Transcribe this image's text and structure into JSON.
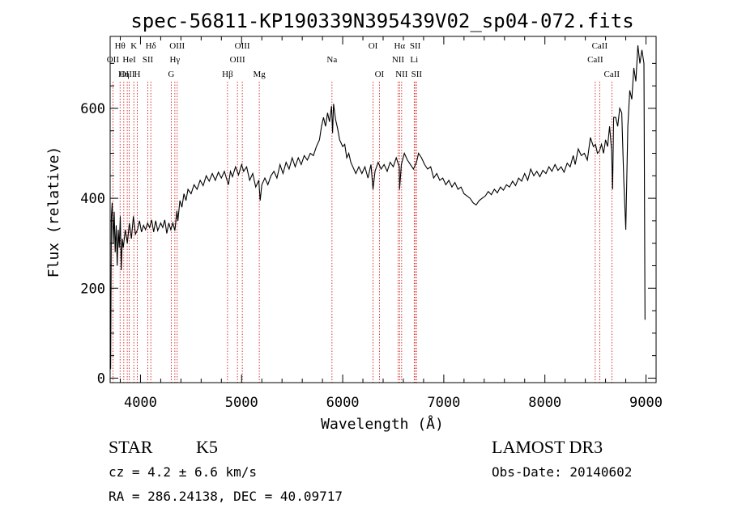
{
  "chart_data": {
    "type": "line",
    "title": "spec-56811-KP190339N395439V02_sp04-072.fits",
    "xlabel": "Wavelength (Å)",
    "ylabel": "Flux (relative)",
    "xlim": [
      3700,
      9100
    ],
    "ylim": [
      -10,
      760
    ],
    "xticks": [
      4000,
      5000,
      6000,
      7000,
      8000,
      9000
    ],
    "yticks": [
      0,
      200,
      400,
      600
    ],
    "grid": false,
    "series": [
      {
        "points": [
          [
            3700,
            150
          ],
          [
            3705,
            20
          ],
          [
            3712,
            360
          ],
          [
            3720,
            390
          ],
          [
            3730,
            300
          ],
          [
            3740,
            370
          ],
          [
            3750,
            280
          ],
          [
            3760,
            340
          ],
          [
            3770,
            250
          ],
          [
            3780,
            330
          ],
          [
            3790,
            290
          ],
          [
            3800,
            360
          ],
          [
            3810,
            240
          ],
          [
            3820,
            310
          ],
          [
            3830,
            290
          ],
          [
            3850,
            330
          ],
          [
            3870,
            300
          ],
          [
            3890,
            345
          ],
          [
            3910,
            310
          ],
          [
            3930,
            360
          ],
          [
            3950,
            320
          ],
          [
            3970,
            330
          ],
          [
            3990,
            350
          ],
          [
            4010,
            325
          ],
          [
            4030,
            340
          ],
          [
            4050,
            330
          ],
          [
            4070,
            345
          ],
          [
            4090,
            335
          ],
          [
            4110,
            352
          ],
          [
            4130,
            325
          ],
          [
            4150,
            350
          ],
          [
            4170,
            328
          ],
          [
            4200,
            345
          ],
          [
            4220,
            335
          ],
          [
            4240,
            352
          ],
          [
            4260,
            322
          ],
          [
            4280,
            345
          ],
          [
            4300,
            330
          ],
          [
            4320,
            345
          ],
          [
            4340,
            328
          ],
          [
            4360,
            372
          ],
          [
            4370,
            350
          ],
          [
            4390,
            395
          ],
          [
            4410,
            380
          ],
          [
            4430,
            410
          ],
          [
            4450,
            395
          ],
          [
            4470,
            420
          ],
          [
            4500,
            410
          ],
          [
            4530,
            430
          ],
          [
            4560,
            420
          ],
          [
            4590,
            440
          ],
          [
            4620,
            428
          ],
          [
            4650,
            450
          ],
          [
            4680,
            438
          ],
          [
            4710,
            455
          ],
          [
            4740,
            440
          ],
          [
            4770,
            458
          ],
          [
            4800,
            445
          ],
          [
            4830,
            460
          ],
          [
            4850,
            445
          ],
          [
            4870,
            430
          ],
          [
            4890,
            460
          ],
          [
            4910,
            448
          ],
          [
            4940,
            470
          ],
          [
            4970,
            452
          ],
          [
            5000,
            475
          ],
          [
            5020,
            460
          ],
          [
            5050,
            470
          ],
          [
            5080,
            440
          ],
          [
            5110,
            455
          ],
          [
            5140,
            425
          ],
          [
            5170,
            440
          ],
          [
            5184,
            395
          ],
          [
            5200,
            430
          ],
          [
            5230,
            445
          ],
          [
            5260,
            430
          ],
          [
            5290,
            450
          ],
          [
            5320,
            460
          ],
          [
            5350,
            445
          ],
          [
            5380,
            475
          ],
          [
            5410,
            455
          ],
          [
            5440,
            480
          ],
          [
            5470,
            465
          ],
          [
            5500,
            490
          ],
          [
            5530,
            470
          ],
          [
            5560,
            490
          ],
          [
            5590,
            475
          ],
          [
            5620,
            495
          ],
          [
            5650,
            485
          ],
          [
            5680,
            500
          ],
          [
            5710,
            495
          ],
          [
            5740,
            515
          ],
          [
            5770,
            530
          ],
          [
            5790,
            560
          ],
          [
            5810,
            580
          ],
          [
            5830,
            560
          ],
          [
            5850,
            590
          ],
          [
            5870,
            570
          ],
          [
            5890,
            605
          ],
          [
            5900,
            545
          ],
          [
            5910,
            610
          ],
          [
            5930,
            575
          ],
          [
            5950,
            555
          ],
          [
            5970,
            530
          ],
          [
            6000,
            515
          ],
          [
            6020,
            520
          ],
          [
            6040,
            490
          ],
          [
            6060,
            500
          ],
          [
            6080,
            480
          ],
          [
            6100,
            470
          ],
          [
            6130,
            455
          ],
          [
            6160,
            470
          ],
          [
            6190,
            455
          ],
          [
            6220,
            470
          ],
          [
            6250,
            445
          ],
          [
            6280,
            475
          ],
          [
            6300,
            420
          ],
          [
            6320,
            460
          ],
          [
            6350,
            480
          ],
          [
            6380,
            465
          ],
          [
            6410,
            475
          ],
          [
            6440,
            460
          ],
          [
            6470,
            480
          ],
          [
            6500,
            470
          ],
          [
            6530,
            490
          ],
          [
            6560,
            470
          ],
          [
            6563,
            420
          ],
          [
            6580,
            475
          ],
          [
            6610,
            500
          ],
          [
            6640,
            485
          ],
          [
            6670,
            475
          ],
          [
            6700,
            465
          ],
          [
            6730,
            480
          ],
          [
            6750,
            500
          ],
          [
            6780,
            490
          ],
          [
            6810,
            475
          ],
          [
            6840,
            465
          ],
          [
            6870,
            470
          ],
          [
            6900,
            445
          ],
          [
            6930,
            455
          ],
          [
            6960,
            440
          ],
          [
            6990,
            445
          ],
          [
            7020,
            430
          ],
          [
            7050,
            440
          ],
          [
            7080,
            425
          ],
          [
            7110,
            435
          ],
          [
            7140,
            420
          ],
          [
            7170,
            425
          ],
          [
            7200,
            410
          ],
          [
            7230,
            405
          ],
          [
            7260,
            400
          ],
          [
            7290,
            390
          ],
          [
            7320,
            385
          ],
          [
            7350,
            395
          ],
          [
            7380,
            400
          ],
          [
            7410,
            405
          ],
          [
            7440,
            415
          ],
          [
            7470,
            408
          ],
          [
            7500,
            420
          ],
          [
            7530,
            412
          ],
          [
            7560,
            425
          ],
          [
            7590,
            418
          ],
          [
            7620,
            430
          ],
          [
            7650,
            425
          ],
          [
            7680,
            438
          ],
          [
            7710,
            428
          ],
          [
            7740,
            445
          ],
          [
            7770,
            438
          ],
          [
            7800,
            455
          ],
          [
            7830,
            440
          ],
          [
            7860,
            465
          ],
          [
            7890,
            450
          ],
          [
            7920,
            460
          ],
          [
            7950,
            448
          ],
          [
            7980,
            462
          ],
          [
            8010,
            455
          ],
          [
            8040,
            470
          ],
          [
            8070,
            460
          ],
          [
            8100,
            475
          ],
          [
            8130,
            462
          ],
          [
            8160,
            470
          ],
          [
            8190,
            458
          ],
          [
            8220,
            478
          ],
          [
            8250,
            470
          ],
          [
            8280,
            495
          ],
          [
            8300,
            475
          ],
          [
            8330,
            510
          ],
          [
            8360,
            495
          ],
          [
            8390,
            500
          ],
          [
            8420,
            485
          ],
          [
            8450,
            535
          ],
          [
            8480,
            515
          ],
          [
            8500,
            520
          ],
          [
            8520,
            500
          ],
          [
            8540,
            505
          ],
          [
            8560,
            520
          ],
          [
            8580,
            500
          ],
          [
            8600,
            530
          ],
          [
            8620,
            515
          ],
          [
            8640,
            560
          ],
          [
            8660,
            505
          ],
          [
            8670,
            420
          ],
          [
            8680,
            580
          ],
          [
            8700,
            580
          ],
          [
            8720,
            560
          ],
          [
            8740,
            600
          ],
          [
            8760,
            590
          ],
          [
            8780,
            440
          ],
          [
            8800,
            330
          ],
          [
            8820,
            560
          ],
          [
            8840,
            640
          ],
          [
            8860,
            620
          ],
          [
            8880,
            690
          ],
          [
            8900,
            660
          ],
          [
            8920,
            740
          ],
          [
            8940,
            700
          ],
          [
            8960,
            730
          ],
          [
            8980,
            700
          ],
          [
            8990,
            130
          ]
        ]
      }
    ],
    "line_labels": [
      {
        "label": "OII",
        "x": 3727,
        "row": 1
      },
      {
        "label": "Hθ",
        "x": 3798,
        "row": 0
      },
      {
        "label": "OIII",
        "x": 3869,
        "row": 2
      },
      {
        "label": "HeI",
        "x": 3889,
        "row": 1
      },
      {
        "label": "Hη",
        "x": 3835,
        "row": 2
      },
      {
        "label": "K",
        "x": 3934,
        "row": 0
      },
      {
        "label": "H",
        "x": 3968,
        "row": 2
      },
      {
        "label": "SII",
        "x": 4072,
        "row": 1
      },
      {
        "label": "Hδ",
        "x": 4102,
        "row": 0
      },
      {
        "label": "G",
        "x": 4304,
        "row": 2
      },
      {
        "label": "Hγ",
        "x": 4340,
        "row": 1
      },
      {
        "label": "OIII",
        "x": 4363,
        "row": 0
      },
      {
        "label": "Hβ",
        "x": 4861,
        "row": 2
      },
      {
        "label": "OIII",
        "x": 4959,
        "row": 1
      },
      {
        "label": "OIII",
        "x": 5007,
        "row": 0
      },
      {
        "label": "Mg",
        "x": 5175,
        "row": 2
      },
      {
        "label": "Na",
        "x": 5894,
        "row": 1
      },
      {
        "label": "OI",
        "x": 6300,
        "row": 0
      },
      {
        "label": "OI",
        "x": 6363,
        "row": 2
      },
      {
        "label": "NII",
        "x": 6548,
        "row": 1
      },
      {
        "label": "Hα",
        "x": 6563,
        "row": 0
      },
      {
        "label": "NII",
        "x": 6583,
        "row": 2
      },
      {
        "label": "Li",
        "x": 6707,
        "row": 1
      },
      {
        "label": "SII",
        "x": 6717,
        "row": 0
      },
      {
        "label": "SII",
        "x": 6731,
        "row": 2
      },
      {
        "label": "CaII",
        "x": 8498,
        "row": 1
      },
      {
        "label": "CaII",
        "x": 8542,
        "row": 0
      },
      {
        "label": "CaII",
        "x": 8662,
        "row": 2
      }
    ],
    "line_color": "#cc0000"
  },
  "info": {
    "class": "STAR",
    "subclass": "K5",
    "survey": "LAMOST DR3",
    "cz": "cz = 4.2 ± 6.6 km/s",
    "obs_date": "Obs-Date: 20140602",
    "radec": "RA = 286.24138, DEC =  40.09717"
  }
}
